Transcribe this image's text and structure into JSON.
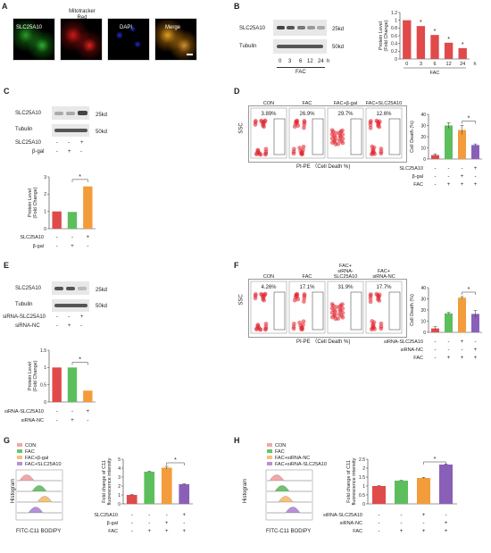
{
  "panels": [
    "A",
    "B",
    "C",
    "D",
    "E",
    "F",
    "G",
    "H"
  ],
  "A": {
    "label_gene": "SLC25A10",
    "label_mito": "Mitotracker\nRed",
    "label_dapi": "DAPI",
    "label_merge": "Merge"
  },
  "B": {
    "wb_labels": [
      "SLC25A10",
      "Tubulin"
    ],
    "kd": [
      "25kd",
      "50kd"
    ],
    "lanes": [
      "0",
      "3",
      "6",
      "12",
      "24"
    ],
    "unit": "h",
    "treatment": "FAC"
  },
  "C": {
    "wb_labels": [
      "SLC25A10",
      "Tubulin"
    ],
    "kd": [
      "25kd",
      "50kd"
    ],
    "row1": {
      "label": "SLC25A10",
      "values": [
        "-",
        "-",
        "+"
      ]
    },
    "row2": {
      "label": "β-gal",
      "values": [
        "-",
        "+",
        "-"
      ]
    }
  },
  "D": {
    "gates": [
      {
        "name": "CON",
        "pct": "3.89%"
      },
      {
        "name": "FAC",
        "pct": "26.9%"
      },
      {
        "name": "FAC+β-gal",
        "pct": "29.7%"
      },
      {
        "name": "FAC+SLC25A10",
        "pct": "12.6%"
      }
    ],
    "ylab": "SSC",
    "xlab": "PI-PE （Cell Death %)",
    "rows": [
      {
        "label": "SLC25A10",
        "values": [
          "-",
          "-",
          "-",
          "+"
        ]
      },
      {
        "label": "β-gal",
        "values": [
          "-",
          "-",
          "+",
          "-"
        ]
      },
      {
        "label": "FAC",
        "values": [
          "-",
          "+",
          "+",
          "+"
        ]
      }
    ]
  },
  "E": {
    "wb_labels": [
      "SLC25A10",
      "Tubulin"
    ],
    "kd": [
      "25kd",
      "50kd"
    ],
    "row1": {
      "label": "siRNA-SLC25A10",
      "values": [
        "-",
        "-",
        "+"
      ]
    },
    "row2": {
      "label": "siRNA-NC",
      "values": [
        "-",
        "+",
        "-"
      ]
    }
  },
  "F": {
    "gates": [
      {
        "name": "CON",
        "pct": "4.26%"
      },
      {
        "name": "FAC",
        "pct": "17.1%"
      },
      {
        "name": "FAC+\nsiRNA-\nSLC25A10",
        "pct": "31.9%"
      },
      {
        "name": "FAC+\nsiRNA-NC",
        "pct": "17.7%"
      }
    ],
    "ylab": "SSC",
    "xlab": "PI-PE （Cell Death %)",
    "rows": [
      {
        "label": "siRNA-SLC25A10",
        "values": [
          "-",
          "-",
          "+",
          "-"
        ]
      },
      {
        "label": "siRNA-NC",
        "values": [
          "-",
          "-",
          "-",
          "+"
        ]
      },
      {
        "label": "FAC",
        "values": [
          "-",
          "+",
          "+",
          "+"
        ]
      }
    ]
  },
  "G": {
    "legend": [
      {
        "name": "CON",
        "color": "#f4a6a6"
      },
      {
        "name": "FAC",
        "color": "#6cc46c"
      },
      {
        "name": "FAC+β-gal",
        "color": "#f5c27a"
      },
      {
        "name": "FAC+SLC25A10",
        "color": "#b98fd9"
      }
    ],
    "ylab": "Histogram",
    "xlab": "FITC-C11 BODIPY",
    "rows": [
      {
        "label": "SLC25A10",
        "values": [
          "-",
          "-",
          "-",
          "+"
        ]
      },
      {
        "label": "β-gal",
        "values": [
          "-",
          "-",
          "+",
          "-"
        ]
      },
      {
        "label": "FAC",
        "values": [
          "-",
          "+",
          "+",
          "+"
        ]
      }
    ]
  },
  "H": {
    "legend": [
      {
        "name": "CON",
        "color": "#f4a6a6"
      },
      {
        "name": "FAC",
        "color": "#6cc46c"
      },
      {
        "name": "FAC+siRNA-NC",
        "color": "#f5c27a"
      },
      {
        "name": "FAC+siRNA-SLC25A10",
        "color": "#b98fd9"
      }
    ],
    "ylab": "Histogram",
    "xlab": "FITC-C11 BODIPY",
    "rows": [
      {
        "label": "siRNA-SLC25A10",
        "values": [
          "-",
          "-",
          "+",
          "-"
        ]
      },
      {
        "label": "siRNA-NC",
        "values": [
          "-",
          "-",
          "-",
          "+"
        ]
      },
      {
        "label": "FAC",
        "values": [
          "-",
          "+",
          "+",
          "+"
        ]
      }
    ]
  },
  "chart_data": [
    {
      "id": "B",
      "type": "bar",
      "categories": [
        "0",
        "3",
        "6",
        "12",
        "24"
      ],
      "values": [
        1.0,
        0.85,
        0.62,
        0.42,
        0.28
      ],
      "ylabel": "Protein Level\n(Fold Change)",
      "xlabel": "FAC",
      "xunit": "h",
      "ylim": [
        0,
        1.2
      ],
      "yticks": [
        "0",
        "0.2",
        "0.4",
        "0.6",
        "0.8",
        "1",
        "1.2"
      ],
      "colors": [
        "#e04a4a",
        "#e04a4a",
        "#e04a4a",
        "#e04a4a",
        "#e04a4a"
      ],
      "sig": [
        1,
        2,
        3,
        4
      ]
    },
    {
      "id": "C",
      "type": "bar",
      "categories": [
        "1",
        "2",
        "3"
      ],
      "values": [
        1.0,
        0.97,
        2.45
      ],
      "ylabel": "Protein Level\n(Fold Change)",
      "ylim": [
        0,
        3
      ],
      "yticks": [
        "0",
        "1",
        "2",
        "3"
      ],
      "colors": [
        "#e04a4a",
        "#5cbf5c",
        "#f39c3c"
      ]
    },
    {
      "id": "D",
      "type": "bar",
      "categories": [
        "1",
        "2",
        "3",
        "4"
      ],
      "values": [
        3.5,
        30,
        26,
        12.5
      ],
      "errors": [
        1,
        2.5,
        4,
        1
      ],
      "ylabel": "Cell Death (%)",
      "ylim": [
        0,
        40
      ],
      "yticks": [
        "0",
        "10",
        "20",
        "30",
        "40"
      ],
      "colors": [
        "#e04a4a",
        "#5cbf5c",
        "#f39c3c",
        "#8a5fb8"
      ]
    },
    {
      "id": "E",
      "type": "bar",
      "categories": [
        "1",
        "2",
        "3"
      ],
      "values": [
        1.0,
        1.0,
        0.33
      ],
      "ylabel": "Protein Level\n(Fold Change)",
      "ylim": [
        0,
        1.5
      ],
      "yticks": [
        "0",
        "0.5",
        "1",
        "1.5"
      ],
      "colors": [
        "#e04a4a",
        "#5cbf5c",
        "#f39c3c"
      ]
    },
    {
      "id": "F",
      "type": "bar",
      "categories": [
        "1",
        "2",
        "3",
        "4"
      ],
      "values": [
        3.5,
        17,
        31,
        16.5
      ],
      "errors": [
        1.5,
        0.8,
        1,
        3
      ],
      "ylabel": "Cell Death (%)",
      "ylim": [
        0,
        40
      ],
      "yticks": [
        "0",
        "10",
        "20",
        "30",
        "40"
      ],
      "colors": [
        "#e04a4a",
        "#5cbf5c",
        "#f39c3c",
        "#8a5fb8"
      ]
    },
    {
      "id": "G",
      "type": "bar",
      "categories": [
        "1",
        "2",
        "3",
        "4"
      ],
      "values": [
        1.0,
        3.6,
        4.05,
        2.2
      ],
      "errors": [
        0.05,
        0.05,
        0.15,
        0.05
      ],
      "ylabel": "Fold change of C11\nfluorescence intensity",
      "ylim": [
        0,
        5
      ],
      "yticks": [
        "0",
        "1",
        "2",
        "3",
        "4",
        "5"
      ],
      "colors": [
        "#e04a4a",
        "#5cbf5c",
        "#f39c3c",
        "#8a5fb8"
      ]
    },
    {
      "id": "H",
      "type": "bar",
      "categories": [
        "1",
        "2",
        "3",
        "4"
      ],
      "values": [
        1.0,
        1.3,
        1.45,
        2.2
      ],
      "errors": [
        0.02,
        0.02,
        0.03,
        0.03
      ],
      "ylabel": "Fold change of C11\nfluorescence intensity",
      "ylim": [
        0,
        2.5
      ],
      "yticks": [
        "0",
        "0.5",
        "1",
        "1.5",
        "2",
        "2.5"
      ],
      "colors": [
        "#e04a4a",
        "#5cbf5c",
        "#f39c3c",
        "#8a5fb8"
      ]
    }
  ]
}
